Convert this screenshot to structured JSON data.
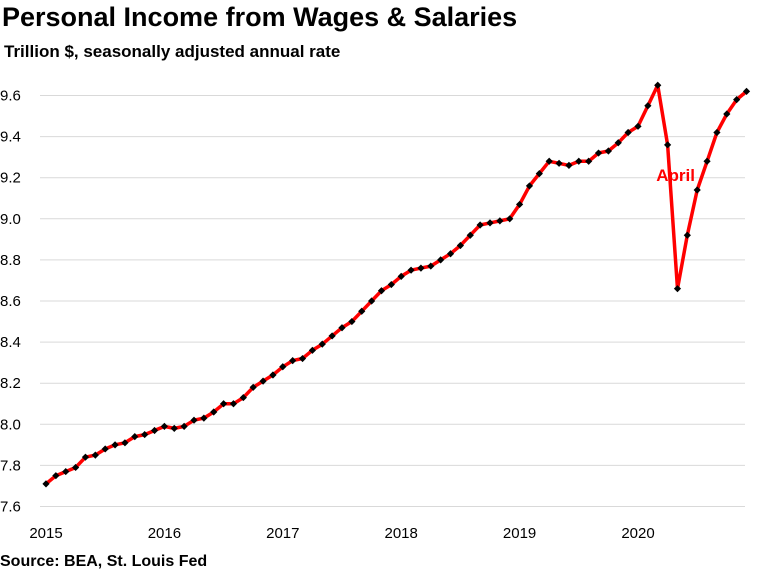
{
  "chart_data": {
    "type": "line",
    "title": "Personal Income from Wages & Salaries",
    "subtitle": "Trillion $, seasonally adjusted annual rate",
    "source": "Source: BEA, St. Louis Fed",
    "xlabel": "",
    "ylabel": "",
    "ylim": [
      7.6,
      9.7
    ],
    "yticks": [
      "7.6",
      "7.8",
      "8.0",
      "8.2",
      "8.4",
      "8.6",
      "8.8",
      "9.0",
      "9.2",
      "9.4",
      "9.6"
    ],
    "xticks": [
      "2015",
      "2016",
      "2017",
      "2018",
      "2019",
      "2020"
    ],
    "grid": true,
    "series": [
      {
        "name": "Wages & Salaries",
        "color": "#ff0000",
        "marker_color": "#000000",
        "start": "2015-01",
        "frequency": "monthly",
        "values": [
          7.71,
          7.75,
          7.77,
          7.79,
          7.84,
          7.85,
          7.88,
          7.9,
          7.91,
          7.94,
          7.95,
          7.97,
          7.99,
          7.98,
          7.99,
          8.02,
          8.03,
          8.06,
          8.1,
          8.1,
          8.13,
          8.18,
          8.21,
          8.24,
          8.28,
          8.31,
          8.32,
          8.36,
          8.39,
          8.43,
          8.47,
          8.5,
          8.55,
          8.6,
          8.65,
          8.68,
          8.72,
          8.75,
          8.76,
          8.77,
          8.8,
          8.83,
          8.87,
          8.92,
          8.97,
          8.98,
          8.99,
          9.0,
          9.07,
          9.16,
          9.22,
          9.28,
          9.27,
          9.26,
          9.28,
          9.28,
          9.32,
          9.33,
          9.37,
          9.42,
          9.45,
          9.55,
          9.65,
          9.36,
          8.66,
          8.92,
          9.14,
          9.28,
          9.42,
          9.51,
          9.58,
          9.62
        ]
      }
    ],
    "annotations": [
      {
        "text": "April",
        "color": "#ff0000",
        "point_index": 63
      }
    ]
  }
}
